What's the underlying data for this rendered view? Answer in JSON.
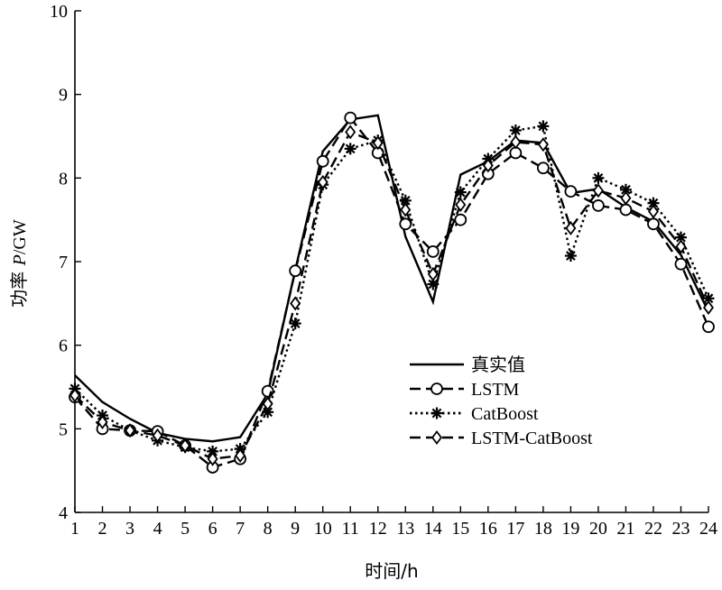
{
  "chart_data": {
    "type": "line",
    "xlabel": "时间/h",
    "ylabel_prefix": "功率 ",
    "ylabel_var": "P",
    "ylabel_suffix": "/GW",
    "xlim": [
      1,
      24
    ],
    "ylim": [
      4,
      10
    ],
    "xticks": [
      1,
      2,
      3,
      4,
      5,
      6,
      7,
      8,
      9,
      10,
      11,
      12,
      13,
      14,
      15,
      16,
      17,
      18,
      19,
      20,
      21,
      22,
      23,
      24
    ],
    "yticks": [
      4,
      5,
      6,
      7,
      8,
      9,
      10
    ],
    "legend_position": "center-right",
    "x": [
      1,
      2,
      3,
      4,
      5,
      6,
      7,
      8,
      9,
      10,
      11,
      12,
      13,
      14,
      15,
      16,
      17,
      18,
      19,
      20,
      21,
      22,
      23,
      24
    ],
    "series": [
      {
        "name": "真实值",
        "style": "solid",
        "marker": "none",
        "values": [
          5.64,
          5.32,
          5.12,
          4.95,
          4.88,
          4.85,
          4.9,
          5.42,
          6.9,
          8.32,
          8.7,
          8.75,
          7.3,
          6.52,
          8.04,
          8.2,
          8.45,
          8.42,
          7.82,
          7.87,
          7.65,
          7.48,
          7.08,
          6.4
        ]
      },
      {
        "name": "LSTM",
        "style": "dashed",
        "marker": "circle",
        "values": [
          5.38,
          5.0,
          4.98,
          4.97,
          4.8,
          4.54,
          4.64,
          5.45,
          6.89,
          8.2,
          8.72,
          8.3,
          7.45,
          7.12,
          7.5,
          8.05,
          8.3,
          8.12,
          7.84,
          7.67,
          7.62,
          7.45,
          6.97,
          6.22
        ]
      },
      {
        "name": "CatBoost",
        "style": "dotted",
        "marker": "asterisk",
        "values": [
          5.48,
          5.16,
          4.98,
          4.86,
          4.78,
          4.73,
          4.76,
          5.2,
          6.26,
          7.92,
          8.35,
          8.45,
          7.73,
          6.73,
          7.83,
          8.23,
          8.57,
          8.62,
          7.07,
          8.0,
          7.86,
          7.7,
          7.29,
          6.56
        ]
      },
      {
        "name": "LSTM-CatBoost",
        "style": "dashed",
        "marker": "diamond",
        "values": [
          5.4,
          5.08,
          4.98,
          4.92,
          4.8,
          4.64,
          4.68,
          5.3,
          6.5,
          7.95,
          8.55,
          8.42,
          7.62,
          6.85,
          7.68,
          8.15,
          8.43,
          8.4,
          7.4,
          7.85,
          7.76,
          7.6,
          7.18,
          6.45
        ]
      }
    ]
  }
}
